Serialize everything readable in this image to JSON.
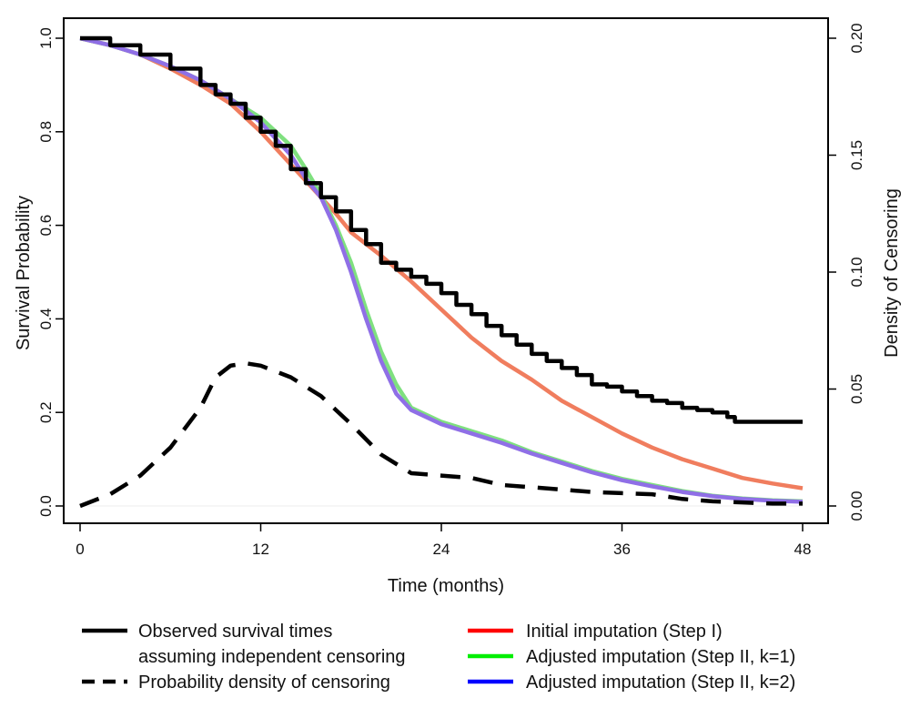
{
  "chart_data": {
    "type": "line",
    "title": "",
    "xlabel": "Time (months)",
    "ylabel": "Survival Probability",
    "y2label": "Density of Censoring",
    "xlim": [
      0,
      48
    ],
    "ylim": [
      0,
      1
    ],
    "y2lim": [
      0,
      0.2
    ],
    "xticks": [
      "0",
      "12",
      "24",
      "36",
      "48"
    ],
    "yticks": [
      "0.0",
      "0.2",
      "0.4",
      "0.6",
      "0.8",
      "1.0"
    ],
    "y2ticks": [
      "0.00",
      "0.05",
      "0.10",
      "0.15",
      "0.20"
    ],
    "grid": false,
    "legend_position": "bottom",
    "series": [
      {
        "name": "Initial imputation (Step I)",
        "color": "#f07d5e",
        "legend_color": "#ff0000",
        "axis": "left",
        "style": "solid",
        "x": [
          0,
          2,
          4,
          6,
          8,
          10,
          12,
          14,
          16,
          17,
          18,
          19,
          20,
          22,
          24,
          26,
          28,
          30,
          32,
          34,
          36,
          38,
          40,
          42,
          44,
          46,
          48
        ],
        "y": [
          1.0,
          0.985,
          0.965,
          0.935,
          0.9,
          0.86,
          0.8,
          0.73,
          0.66,
          0.625,
          0.585,
          0.56,
          0.535,
          0.48,
          0.42,
          0.36,
          0.31,
          0.27,
          0.225,
          0.19,
          0.155,
          0.125,
          0.1,
          0.08,
          0.06,
          0.048,
          0.038
        ]
      },
      {
        "name": "Adjusted imputation (Step II, k=1)",
        "color": "#7fe07f",
        "legend_color": "#00ee00",
        "axis": "left",
        "style": "solid",
        "x": [
          0,
          2,
          4,
          6,
          8,
          10,
          12,
          14,
          15,
          16,
          17,
          18,
          19,
          20,
          21,
          22,
          24,
          26,
          28,
          30,
          32,
          34,
          36,
          38,
          40,
          42,
          44,
          46,
          48
        ],
        "y": [
          1.0,
          0.985,
          0.965,
          0.94,
          0.91,
          0.87,
          0.83,
          0.77,
          0.72,
          0.665,
          0.6,
          0.52,
          0.42,
          0.33,
          0.26,
          0.21,
          0.18,
          0.16,
          0.14,
          0.115,
          0.095,
          0.075,
          0.058,
          0.045,
          0.032,
          0.022,
          0.016,
          0.012,
          0.01
        ]
      },
      {
        "name": "Adjusted imputation (Step II, k=2)",
        "color": "#8f6fe6",
        "legend_color": "#0000ff",
        "axis": "left",
        "style": "solid",
        "x": [
          0,
          2,
          4,
          6,
          8,
          10,
          12,
          14,
          15,
          16,
          17,
          18,
          19,
          20,
          21,
          22,
          24,
          26,
          28,
          30,
          32,
          34,
          36,
          38,
          40,
          42,
          44,
          46,
          48
        ],
        "y": [
          1.0,
          0.985,
          0.965,
          0.94,
          0.91,
          0.87,
          0.82,
          0.75,
          0.7,
          0.66,
          0.59,
          0.5,
          0.4,
          0.31,
          0.24,
          0.205,
          0.175,
          0.155,
          0.135,
          0.112,
          0.092,
          0.072,
          0.055,
          0.042,
          0.03,
          0.021,
          0.015,
          0.011,
          0.009
        ]
      },
      {
        "name": "Observed survival times assuming independent censoring",
        "color": "#000000",
        "axis": "left",
        "style": "solid",
        "step": true,
        "x": [
          0,
          2,
          4,
          6,
          8,
          9,
          10,
          11,
          12,
          13,
          14,
          15,
          16,
          17,
          18,
          19,
          20,
          21,
          22,
          23,
          24,
          25,
          26,
          27,
          28,
          29,
          30,
          31,
          32,
          33,
          34,
          35,
          36,
          37,
          38,
          39,
          40,
          41,
          42,
          43,
          43.5,
          44,
          46,
          48
        ],
        "y": [
          1.0,
          0.985,
          0.965,
          0.935,
          0.9,
          0.88,
          0.86,
          0.83,
          0.8,
          0.77,
          0.72,
          0.69,
          0.66,
          0.63,
          0.59,
          0.56,
          0.52,
          0.505,
          0.49,
          0.475,
          0.455,
          0.43,
          0.41,
          0.385,
          0.365,
          0.345,
          0.325,
          0.31,
          0.295,
          0.28,
          0.26,
          0.255,
          0.245,
          0.235,
          0.225,
          0.22,
          0.21,
          0.205,
          0.2,
          0.19,
          0.18,
          0.18,
          0.18,
          0.18
        ]
      },
      {
        "name": "Probability density of censoring",
        "color": "#000000",
        "axis": "right",
        "style": "dashed",
        "x": [
          0,
          2,
          4,
          6,
          8,
          9,
          10,
          11,
          12,
          14,
          16,
          18,
          20,
          22,
          24,
          26,
          28,
          30,
          32,
          34,
          36,
          38,
          40,
          42,
          44,
          46,
          48
        ],
        "y": [
          0.0,
          0.005,
          0.013,
          0.025,
          0.042,
          0.055,
          0.06,
          0.061,
          0.06,
          0.055,
          0.047,
          0.035,
          0.022,
          0.014,
          0.013,
          0.012,
          0.009,
          0.008,
          0.007,
          0.006,
          0.0055,
          0.005,
          0.003,
          0.002,
          0.0015,
          0.001,
          0.001
        ]
      }
    ],
    "legend": [
      {
        "label": "Observed survival times",
        "label2": "assuming independent censoring",
        "color": "#000000",
        "style": "solid"
      },
      {
        "label": "Probability density of censoring",
        "color": "#000000",
        "style": "dashed"
      },
      {
        "label": "Initial imputation (Step I)",
        "color": "#ff0000",
        "style": "solid"
      },
      {
        "label": "Adjusted imputation (Step II, k=1)",
        "color": "#00ee00",
        "style": "solid"
      },
      {
        "label": "Adjusted imputation (Step II, k=2)",
        "color": "#0000ff",
        "style": "solid"
      }
    ]
  }
}
